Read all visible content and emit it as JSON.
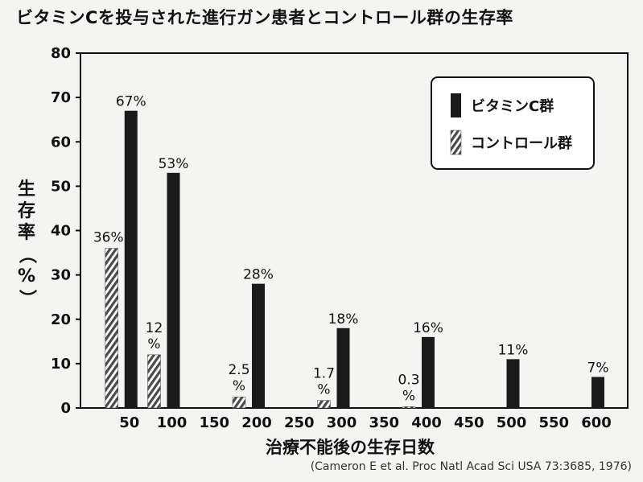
{
  "chart_data": {
    "type": "bar",
    "title": "ビタミンCを投与された進行ガン患者とコントロール群の生存率",
    "ylabel": "生存率（%）",
    "xlabel": "治療不能後の生存日数",
    "source": "(Cameron E et al. Proc Natl Acad Sci USA 73:3685, 1976)",
    "x_ticks": [
      50,
      100,
      150,
      200,
      250,
      300,
      350,
      400,
      450,
      500,
      550,
      600
    ],
    "y_ticks": [
      0,
      10,
      20,
      30,
      40,
      50,
      60,
      70,
      80
    ],
    "ylim": [
      0,
      80
    ],
    "xlim": [
      0,
      650
    ],
    "grid": false,
    "legend_position": "top-right",
    "series": [
      {
        "name": "ビタミンC群",
        "color": "#1a1a1a",
        "pattern": "solid",
        "x": [
          50,
          100,
          200,
          300,
          400,
          500,
          600
        ],
        "values": [
          67,
          53,
          28,
          18,
          16,
          11,
          7
        ],
        "labels": [
          "67%",
          "53%",
          "28%",
          "18%",
          "16%",
          "11%",
          "7%"
        ]
      },
      {
        "name": "コントロール群",
        "color": "#555555",
        "pattern": "hatched",
        "x": [
          50,
          100,
          200,
          300,
          400
        ],
        "values": [
          36,
          12,
          2.5,
          1.7,
          0.3
        ],
        "labels": [
          [
            "36%"
          ],
          [
            "12",
            "%"
          ],
          [
            "2.5",
            "%"
          ],
          [
            "1.7",
            "%"
          ],
          [
            "0.3",
            "%"
          ]
        ]
      }
    ]
  }
}
